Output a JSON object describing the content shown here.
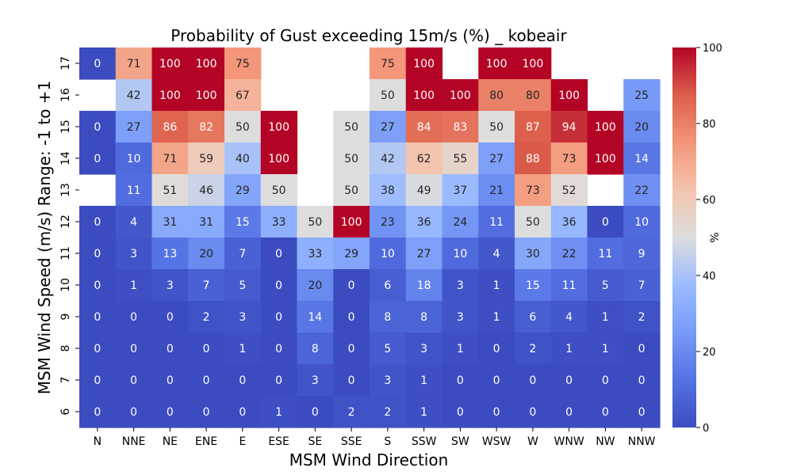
{
  "chart_data": {
    "type": "heatmap",
    "title": "Probability of Gust exceeding 15m/s (%) _ kobeair",
    "xlabel": "MSM Wind Direction",
    "ylabel": "MSM Wind Speed (m/s) Range: -1 to +1",
    "x_categories": [
      "N",
      "NNE",
      "NE",
      "ENE",
      "E",
      "ESE",
      "SE",
      "SSE",
      "S",
      "SSW",
      "SW",
      "WSW",
      "W",
      "WNW",
      "NW",
      "NNW"
    ],
    "y_categories": [
      "17",
      "16",
      "15",
      "14",
      "13",
      "12",
      "11",
      "10",
      "9",
      "8",
      "7",
      "6"
    ],
    "values": [
      [
        0,
        71,
        100,
        100,
        75,
        null,
        null,
        null,
        75,
        100,
        null,
        100,
        100,
        null,
        null,
        null
      ],
      [
        null,
        42,
        100,
        100,
        67,
        null,
        null,
        null,
        50,
        100,
        100,
        80,
        80,
        100,
        null,
        25
      ],
      [
        0,
        27,
        86,
        82,
        50,
        100,
        null,
        50,
        27,
        84,
        83,
        50,
        87,
        94,
        100,
        20
      ],
      [
        0,
        10,
        71,
        59,
        40,
        100,
        null,
        50,
        42,
        62,
        55,
        27,
        88,
        73,
        100,
        14
      ],
      [
        null,
        11,
        51,
        46,
        29,
        50,
        null,
        50,
        38,
        49,
        37,
        21,
        73,
        52,
        null,
        22
      ],
      [
        0,
        4,
        31,
        31,
        15,
        33,
        50,
        100,
        23,
        36,
        24,
        11,
        50,
        36,
        0,
        10
      ],
      [
        0,
        3,
        13,
        20,
        7,
        0,
        33,
        29,
        10,
        27,
        10,
        4,
        30,
        22,
        11,
        9
      ],
      [
        0,
        1,
        3,
        7,
        5,
        0,
        20,
        0,
        6,
        18,
        3,
        1,
        15,
        11,
        5,
        7
      ],
      [
        0,
        0,
        0,
        2,
        3,
        0,
        14,
        0,
        8,
        8,
        3,
        1,
        6,
        4,
        1,
        2
      ],
      [
        0,
        0,
        0,
        0,
        1,
        0,
        8,
        0,
        5,
        3,
        1,
        0,
        2,
        1,
        1,
        0
      ],
      [
        0,
        0,
        0,
        0,
        0,
        0,
        3,
        0,
        3,
        1,
        0,
        0,
        0,
        0,
        0,
        0
      ],
      [
        0,
        0,
        0,
        0,
        0,
        1,
        0,
        2,
        2,
        1,
        0,
        0,
        0,
        0,
        0,
        0
      ]
    ],
    "colormap": "coolwarm",
    "vmin": 0,
    "vmax": 100,
    "colorbar": {
      "label": "%",
      "ticks": [
        "0",
        "20",
        "40",
        "60",
        "80",
        "100"
      ]
    },
    "grid": false
  }
}
